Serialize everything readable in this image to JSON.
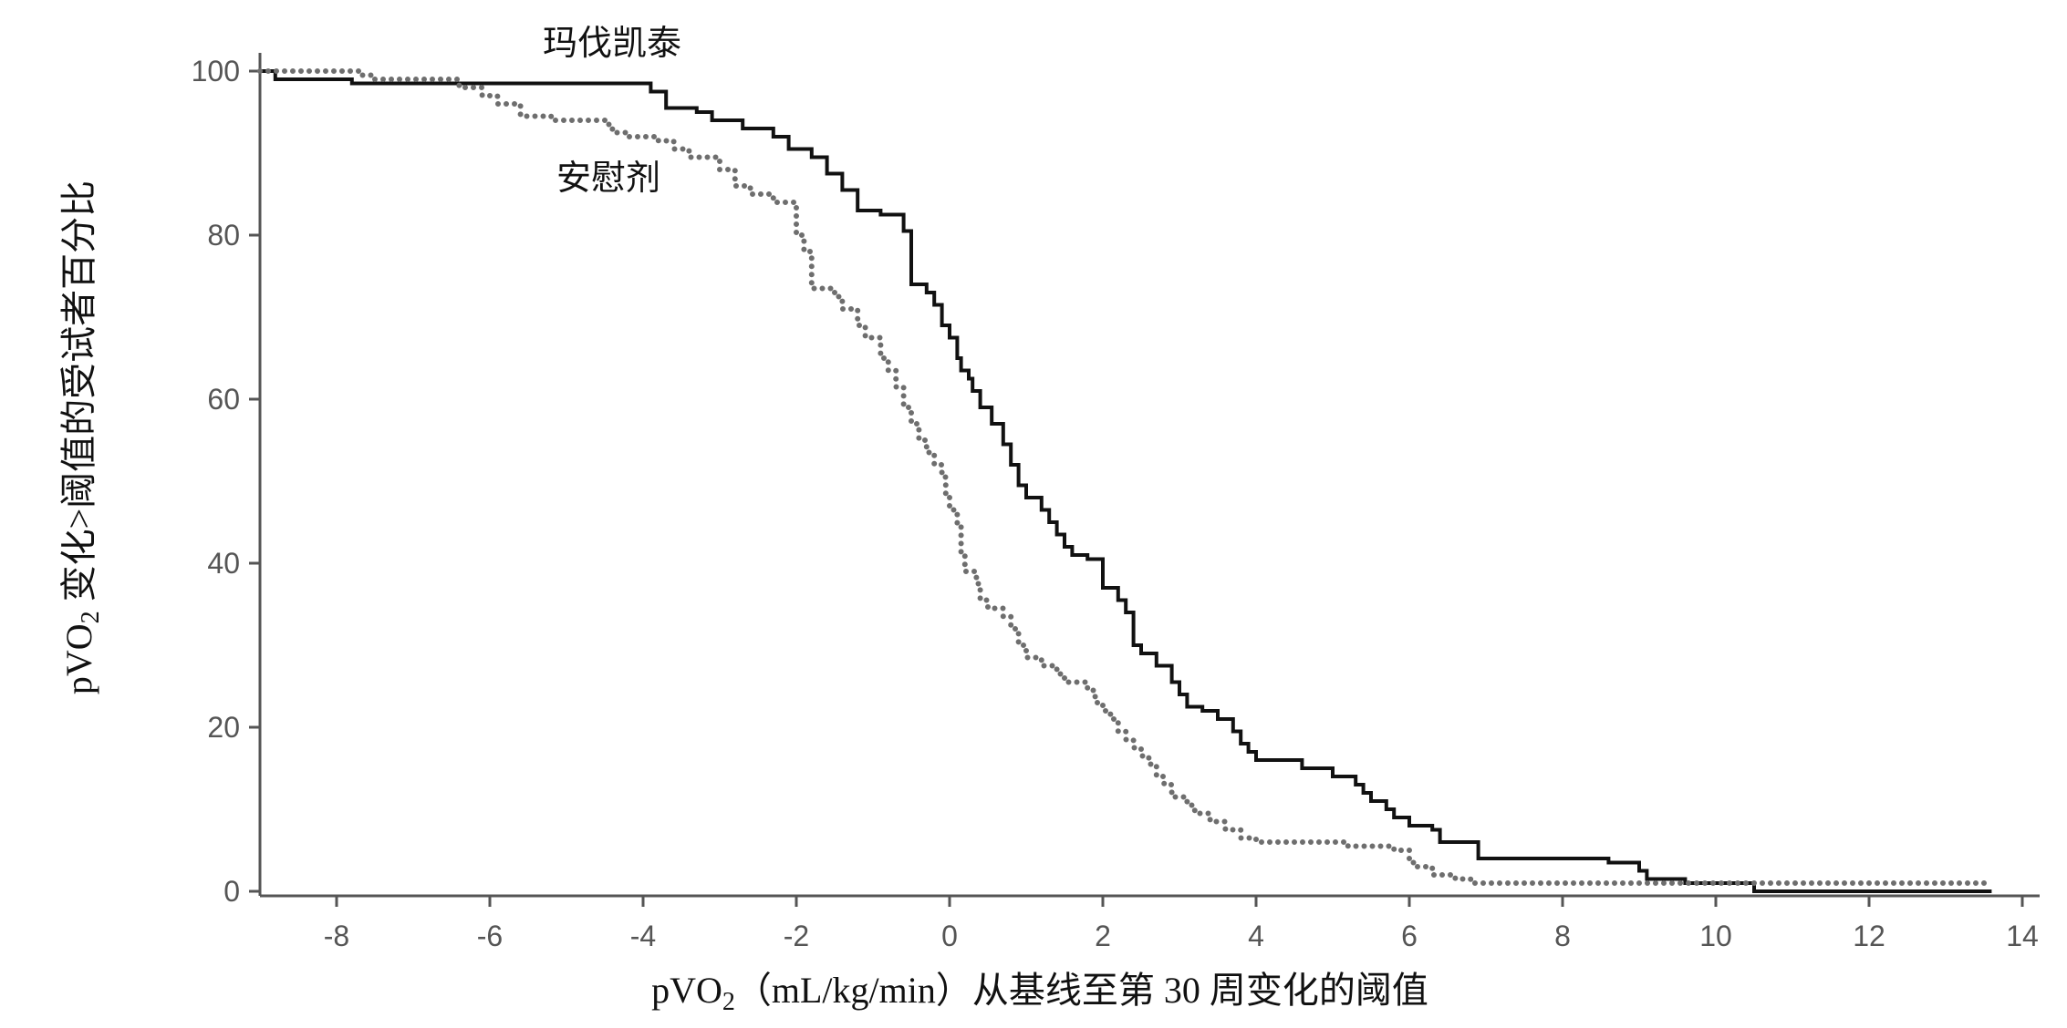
{
  "chart_data": {
    "type": "line",
    "title": "",
    "xlabel_parts": {
      "pre": "pVO",
      "sub": "2",
      "post": "（mL/kg/min）从基线至第 30 周变化的阈值"
    },
    "ylabel_parts": {
      "pre": "pVO",
      "sub": "2",
      "post": " 变化>阈值的受试者百分比"
    },
    "xlim": [
      -9,
      14.2
    ],
    "ylim": [
      0,
      100
    ],
    "xticks": [
      -8,
      -6,
      -4,
      -2,
      0,
      2,
      4,
      6,
      8,
      10,
      12,
      14
    ],
    "yticks": [
      0,
      20,
      40,
      60,
      80,
      100
    ],
    "grid": false,
    "series": [
      {
        "name": "玛伐凯泰",
        "style": "solid-step",
        "color": "#111111",
        "points": [
          [
            -9,
            100
          ],
          [
            -8.8,
            99
          ],
          [
            -7.8,
            98.5
          ],
          [
            -4,
            98.5
          ],
          [
            -3.9,
            97.5
          ],
          [
            -3.7,
            95.5
          ],
          [
            -3.3,
            95
          ],
          [
            -3.1,
            94
          ],
          [
            -2.7,
            93
          ],
          [
            -2.3,
            92
          ],
          [
            -2.1,
            90.5
          ],
          [
            -1.8,
            89.5
          ],
          [
            -1.6,
            87.5
          ],
          [
            -1.4,
            85.5
          ],
          [
            -1.2,
            83
          ],
          [
            -0.9,
            82.5
          ],
          [
            -0.6,
            80.5
          ],
          [
            -0.5,
            77
          ],
          [
            -0.5,
            74
          ],
          [
            -0.3,
            73
          ],
          [
            -0.2,
            71.5
          ],
          [
            -0.1,
            69
          ],
          [
            0,
            67.5
          ],
          [
            0.1,
            65
          ],
          [
            0.15,
            63.5
          ],
          [
            0.25,
            62.5
          ],
          [
            0.3,
            61
          ],
          [
            0.4,
            59
          ],
          [
            0.55,
            57
          ],
          [
            0.7,
            54.5
          ],
          [
            0.8,
            52
          ],
          [
            0.9,
            49.5
          ],
          [
            1.0,
            48
          ],
          [
            1.2,
            46.5
          ],
          [
            1.3,
            45
          ],
          [
            1.4,
            43.5
          ],
          [
            1.5,
            42
          ],
          [
            1.6,
            41
          ],
          [
            1.8,
            40.5
          ],
          [
            2.0,
            38
          ],
          [
            2.0,
            37
          ],
          [
            2.2,
            35.5
          ],
          [
            2.3,
            34
          ],
          [
            2.4,
            32
          ],
          [
            2.4,
            30
          ],
          [
            2.5,
            29
          ],
          [
            2.7,
            27.5
          ],
          [
            2.9,
            25.5
          ],
          [
            3.0,
            24
          ],
          [
            3.1,
            22.5
          ],
          [
            3.3,
            22
          ],
          [
            3.5,
            21
          ],
          [
            3.7,
            19.5
          ],
          [
            3.8,
            18
          ],
          [
            3.9,
            17
          ],
          [
            4.0,
            16
          ],
          [
            4.5,
            16
          ],
          [
            4.6,
            15
          ],
          [
            5.0,
            14
          ],
          [
            5.3,
            13
          ],
          [
            5.4,
            12
          ],
          [
            5.5,
            11
          ],
          [
            5.7,
            10
          ],
          [
            5.8,
            9
          ],
          [
            6.0,
            8
          ],
          [
            6.3,
            7.5
          ],
          [
            6.4,
            6
          ],
          [
            6.9,
            5
          ],
          [
            6.9,
            4
          ],
          [
            8.4,
            4
          ],
          [
            8.6,
            3.5
          ],
          [
            9.0,
            2.5
          ],
          [
            9.1,
            1.5
          ],
          [
            9.5,
            1.5
          ],
          [
            9.6,
            1
          ],
          [
            10.4,
            1
          ],
          [
            10.5,
            0
          ],
          [
            13.6,
            0
          ]
        ]
      },
      {
        "name": "安慰剂",
        "style": "dotted-step",
        "color": "#6e6e6e",
        "points": [
          [
            -9,
            100
          ],
          [
            -7.7,
            99.5
          ],
          [
            -7.5,
            99
          ],
          [
            -6.6,
            99
          ],
          [
            -6.4,
            98
          ],
          [
            -6.1,
            97
          ],
          [
            -5.9,
            96
          ],
          [
            -5.6,
            94.5
          ],
          [
            -5.2,
            94
          ],
          [
            -4.5,
            93.5
          ],
          [
            -4.4,
            92.5
          ],
          [
            -4.2,
            92
          ],
          [
            -3.8,
            91.5
          ],
          [
            -3.6,
            90.5
          ],
          [
            -3.4,
            89.5
          ],
          [
            -3.0,
            88
          ],
          [
            -2.8,
            86
          ],
          [
            -2.6,
            85
          ],
          [
            -2.3,
            84
          ],
          [
            -2.0,
            83.5
          ],
          [
            -2.0,
            80
          ],
          [
            -1.9,
            78
          ],
          [
            -1.8,
            76
          ],
          [
            -1.8,
            73.5
          ],
          [
            -1.5,
            72.5
          ],
          [
            -1.4,
            71
          ],
          [
            -1.2,
            69
          ],
          [
            -1.1,
            67.5
          ],
          [
            -0.9,
            65
          ],
          [
            -0.8,
            63.5
          ],
          [
            -0.7,
            61.5
          ],
          [
            -0.6,
            59
          ],
          [
            -0.5,
            57
          ],
          [
            -0.4,
            55
          ],
          [
            -0.3,
            53.5
          ],
          [
            -0.2,
            52
          ],
          [
            -0.1,
            50.5
          ],
          [
            -0.05,
            48.5
          ],
          [
            0.0,
            46.5
          ],
          [
            0.1,
            44.5
          ],
          [
            0.15,
            41
          ],
          [
            0.2,
            39
          ],
          [
            0.35,
            37.5
          ],
          [
            0.4,
            35.5
          ],
          [
            0.5,
            34.5
          ],
          [
            0.7,
            33.5
          ],
          [
            0.8,
            32
          ],
          [
            0.9,
            30
          ],
          [
            1.0,
            28.5
          ],
          [
            1.2,
            27.5
          ],
          [
            1.4,
            26.5
          ],
          [
            1.5,
            25.5
          ],
          [
            1.8,
            24.5
          ],
          [
            1.9,
            23
          ],
          [
            2.0,
            22
          ],
          [
            2.1,
            21
          ],
          [
            2.2,
            19.5
          ],
          [
            2.3,
            18.5
          ],
          [
            2.4,
            17.5
          ],
          [
            2.5,
            16.5
          ],
          [
            2.6,
            15.5
          ],
          [
            2.7,
            14
          ],
          [
            2.8,
            13
          ],
          [
            2.9,
            11.5
          ],
          [
            3.1,
            10.5
          ],
          [
            3.2,
            9.5
          ],
          [
            3.4,
            8.5
          ],
          [
            3.6,
            7.5
          ],
          [
            3.8,
            6.5
          ],
          [
            4.0,
            6
          ],
          [
            4.5,
            6
          ],
          [
            5.2,
            5.5
          ],
          [
            5.7,
            5.5
          ],
          [
            5.8,
            5
          ],
          [
            6.0,
            3.5
          ],
          [
            6.1,
            3
          ],
          [
            6.3,
            2
          ],
          [
            6.6,
            1.5
          ],
          [
            6.8,
            1
          ],
          [
            13.6,
            1
          ]
        ]
      }
    ],
    "annotations": [
      {
        "text": "玛伐凯泰",
        "series": 0
      },
      {
        "text": "安慰剂",
        "series": 1
      }
    ]
  }
}
